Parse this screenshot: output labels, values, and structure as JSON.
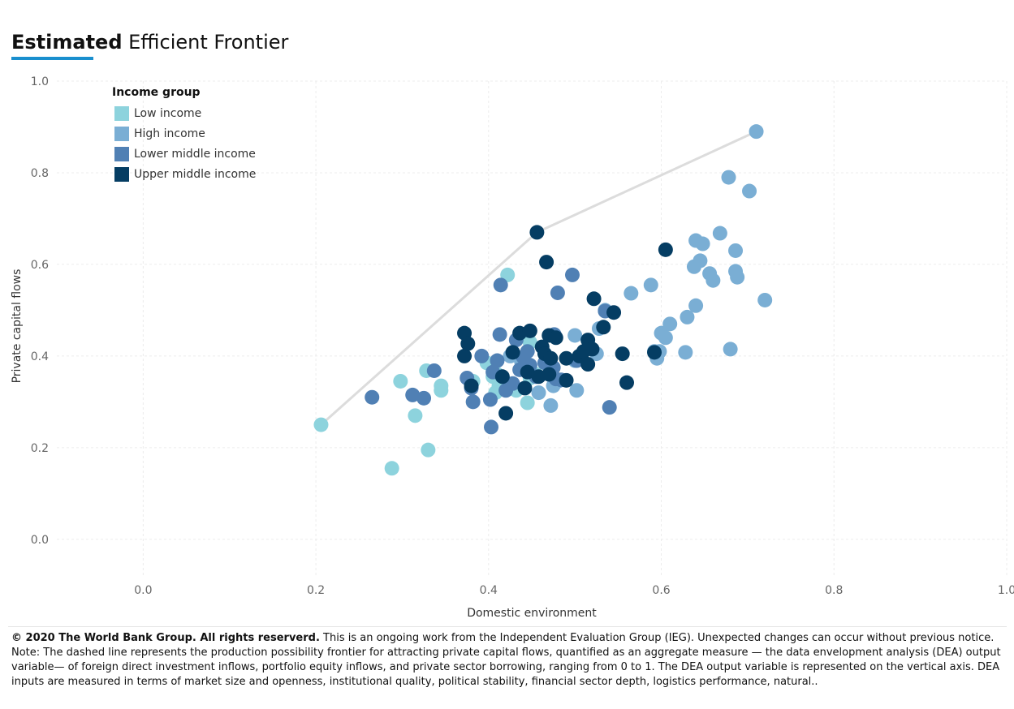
{
  "title": {
    "bold": "Estimated",
    "rest": " Efficient Frontier"
  },
  "legend": {
    "title": "Income group",
    "items": [
      {
        "label": "Low income",
        "color": "#8dd3dd"
      },
      {
        "label": "High income",
        "color": "#7aaed4"
      },
      {
        "label": "Lower middle income",
        "color": "#5080b4"
      },
      {
        "label": "Upper middle income",
        "color": "#053d63"
      }
    ]
  },
  "footer": {
    "copyright": "© 2020 The World Bank Group. All rights reserverd.",
    "notice": " This is an ongoing work from the Independent Evaluation Group (IEG). Unexpected changes can occur without previous notice.",
    "note": "Note: The dashed line represents the production possibility frontier for attracting private capital flows, quantified as an aggregate measure — the data envelopment analysis (DEA) output variable— of foreign direct investment inflows, portfolio equity inflows, and private sector borrowing, ranging from 0 to 1. The DEA output variable is represented on the vertical axis. DEA inputs are measured in terms of market size and openness, institutional quality, political stability, financial sector depth, logistics performance, natural.."
  },
  "chart_data": {
    "type": "scatter",
    "title": "Estimated Efficient Frontier",
    "xlabel": "Domestic environment",
    "ylabel": "Private capital flows",
    "xlim": [
      -0.1,
      1.0
    ],
    "ylim": [
      -0.08,
      1.0
    ],
    "xticks": [
      "0.0",
      "0.2",
      "0.4",
      "0.6",
      "0.8",
      "1.0"
    ],
    "yticks": [
      "0.0",
      "0.2",
      "0.4",
      "0.6",
      "0.8",
      "1.0"
    ],
    "grid": true,
    "legend_position": "top-left",
    "frontier": [
      [
        0.206,
        0.25
      ],
      [
        0.456,
        0.67
      ],
      [
        0.71,
        0.89
      ]
    ],
    "series": [
      {
        "name": "Low income",
        "color": "#8dd3dd",
        "points": [
          [
            0.206,
            0.25
          ],
          [
            0.288,
            0.155
          ],
          [
            0.298,
            0.345
          ],
          [
            0.315,
            0.27
          ],
          [
            0.33,
            0.195
          ],
          [
            0.328,
            0.368
          ],
          [
            0.345,
            0.335
          ],
          [
            0.345,
            0.325
          ],
          [
            0.382,
            0.345
          ],
          [
            0.398,
            0.385
          ],
          [
            0.405,
            0.355
          ],
          [
            0.408,
            0.32
          ],
          [
            0.412,
            0.335
          ],
          [
            0.418,
            0.345
          ],
          [
            0.422,
            0.577
          ],
          [
            0.432,
            0.325
          ],
          [
            0.445,
            0.298
          ],
          [
            0.448,
            0.352
          ],
          [
            0.455,
            0.36
          ],
          [
            0.448,
            0.43
          ],
          [
            0.41,
            0.36
          ]
        ]
      },
      {
        "name": "High income",
        "color": "#7aaed4",
        "points": [
          [
            0.458,
            0.32
          ],
          [
            0.472,
            0.292
          ],
          [
            0.475,
            0.335
          ],
          [
            0.48,
            0.345
          ],
          [
            0.5,
            0.445
          ],
          [
            0.502,
            0.325
          ],
          [
            0.5,
            0.39
          ],
          [
            0.525,
            0.405
          ],
          [
            0.528,
            0.46
          ],
          [
            0.535,
            0.5
          ],
          [
            0.565,
            0.537
          ],
          [
            0.588,
            0.555
          ],
          [
            0.592,
            0.41
          ],
          [
            0.598,
            0.41
          ],
          [
            0.6,
            0.45
          ],
          [
            0.605,
            0.44
          ],
          [
            0.61,
            0.47
          ],
          [
            0.628,
            0.408
          ],
          [
            0.63,
            0.485
          ],
          [
            0.64,
            0.51
          ],
          [
            0.638,
            0.595
          ],
          [
            0.64,
            0.652
          ],
          [
            0.645,
            0.608
          ],
          [
            0.648,
            0.645
          ],
          [
            0.656,
            0.58
          ],
          [
            0.66,
            0.565
          ],
          [
            0.668,
            0.668
          ],
          [
            0.678,
            0.79
          ],
          [
            0.68,
            0.415
          ],
          [
            0.686,
            0.63
          ],
          [
            0.686,
            0.585
          ],
          [
            0.688,
            0.572
          ],
          [
            0.702,
            0.76
          ],
          [
            0.71,
            0.89
          ],
          [
            0.72,
            0.522
          ],
          [
            0.595,
            0.395
          ],
          [
            0.438,
            0.388
          ],
          [
            0.425,
            0.4
          ]
        ]
      },
      {
        "name": "Lower middle income",
        "color": "#5080b4",
        "points": [
          [
            0.265,
            0.31
          ],
          [
            0.312,
            0.315
          ],
          [
            0.325,
            0.308
          ],
          [
            0.337,
            0.368
          ],
          [
            0.375,
            0.352
          ],
          [
            0.38,
            0.33
          ],
          [
            0.382,
            0.3
          ],
          [
            0.392,
            0.4
          ],
          [
            0.402,
            0.305
          ],
          [
            0.403,
            0.245
          ],
          [
            0.405,
            0.365
          ],
          [
            0.41,
            0.39
          ],
          [
            0.413,
            0.447
          ],
          [
            0.414,
            0.555
          ],
          [
            0.42,
            0.325
          ],
          [
            0.428,
            0.34
          ],
          [
            0.432,
            0.435
          ],
          [
            0.436,
            0.37
          ],
          [
            0.44,
            0.398
          ],
          [
            0.445,
            0.41
          ],
          [
            0.448,
            0.38
          ],
          [
            0.455,
            0.355
          ],
          [
            0.465,
            0.385
          ],
          [
            0.47,
            0.39
          ],
          [
            0.475,
            0.375
          ],
          [
            0.476,
            0.447
          ],
          [
            0.48,
            0.538
          ],
          [
            0.484,
            0.348
          ],
          [
            0.497,
            0.577
          ],
          [
            0.502,
            0.39
          ],
          [
            0.535,
            0.498
          ],
          [
            0.54,
            0.288
          ],
          [
            0.478,
            0.35
          ]
        ]
      },
      {
        "name": "Upper middle income",
        "color": "#053d63",
        "points": [
          [
            0.372,
            0.4
          ],
          [
            0.372,
            0.45
          ],
          [
            0.376,
            0.427
          ],
          [
            0.38,
            0.335
          ],
          [
            0.416,
            0.355
          ],
          [
            0.42,
            0.275
          ],
          [
            0.428,
            0.408
          ],
          [
            0.436,
            0.45
          ],
          [
            0.442,
            0.33
          ],
          [
            0.445,
            0.365
          ],
          [
            0.448,
            0.455
          ],
          [
            0.456,
            0.67
          ],
          [
            0.458,
            0.355
          ],
          [
            0.462,
            0.42
          ],
          [
            0.465,
            0.405
          ],
          [
            0.467,
            0.605
          ],
          [
            0.47,
            0.445
          ],
          [
            0.472,
            0.395
          ],
          [
            0.478,
            0.44
          ],
          [
            0.49,
            0.395
          ],
          [
            0.49,
            0.347
          ],
          [
            0.505,
            0.4
          ],
          [
            0.51,
            0.41
          ],
          [
            0.515,
            0.435
          ],
          [
            0.515,
            0.382
          ],
          [
            0.52,
            0.415
          ],
          [
            0.522,
            0.525
          ],
          [
            0.533,
            0.463
          ],
          [
            0.545,
            0.495
          ],
          [
            0.555,
            0.405
          ],
          [
            0.56,
            0.342
          ],
          [
            0.592,
            0.408
          ],
          [
            0.605,
            0.632
          ],
          [
            0.47,
            0.36
          ]
        ]
      }
    ]
  }
}
